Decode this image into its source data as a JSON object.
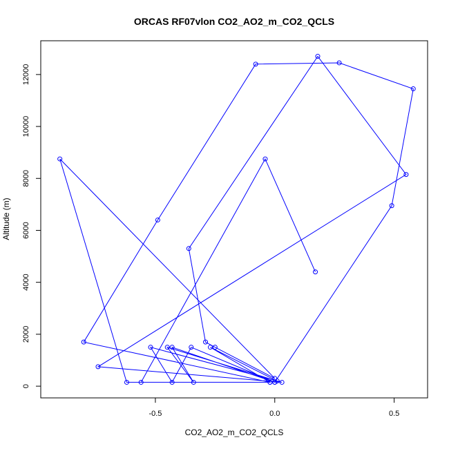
{
  "chart_data": {
    "type": "line",
    "title": "ORCAS RF07vlon CO2_AO2_m_CO2_QCLS",
    "xlabel": "CO2_AO2_m_CO2_QCLS",
    "ylabel": "Altitude (m)",
    "xlim": [
      -0.98,
      0.64
    ],
    "ylim": [
      -450,
      13300
    ],
    "xticks": [
      -0.5,
      0.0,
      0.5
    ],
    "xtick_labels": [
      "-0.5",
      "0.0",
      "0.5"
    ],
    "yticks": [
      0,
      2000,
      4000,
      6000,
      8000,
      10000,
      12000
    ],
    "ytick_labels": [
      "0",
      "2000",
      "4000",
      "6000",
      "8000",
      "10000",
      "12000"
    ],
    "grid": false,
    "line_color": "#0000ff",
    "marker": "open-circle",
    "series": [
      {
        "points": [
          [
            0.17,
            4400
          ],
          [
            -0.04,
            8750
          ],
          [
            -0.56,
            150
          ],
          [
            -0.02,
            150
          ],
          [
            -0.27,
            1500
          ],
          [
            0.01,
            200
          ],
          [
            -0.45,
            1500
          ],
          [
            -0.34,
            150
          ],
          [
            -0.43,
            1500
          ],
          [
            0.0,
            150
          ],
          [
            -0.35,
            1500
          ],
          [
            -0.43,
            150
          ],
          [
            -0.52,
            1500
          ],
          [
            0.03,
            150
          ],
          [
            -0.74,
            750
          ],
          [
            0.55,
            8150
          ],
          [
            0.18,
            12700
          ],
          [
            -0.36,
            5300
          ],
          [
            -0.29,
            1700
          ],
          [
            -0.25,
            1500
          ],
          [
            0.0,
            300
          ],
          [
            -0.9,
            8750
          ],
          [
            -0.62,
            150
          ],
          [
            -0.02,
            150
          ],
          [
            -0.8,
            1700
          ],
          [
            -0.49,
            6400
          ],
          [
            -0.08,
            12400
          ],
          [
            0.27,
            12450
          ],
          [
            0.58,
            11450
          ],
          [
            0.49,
            6950
          ],
          [
            0.0,
            150
          ]
        ]
      }
    ]
  }
}
